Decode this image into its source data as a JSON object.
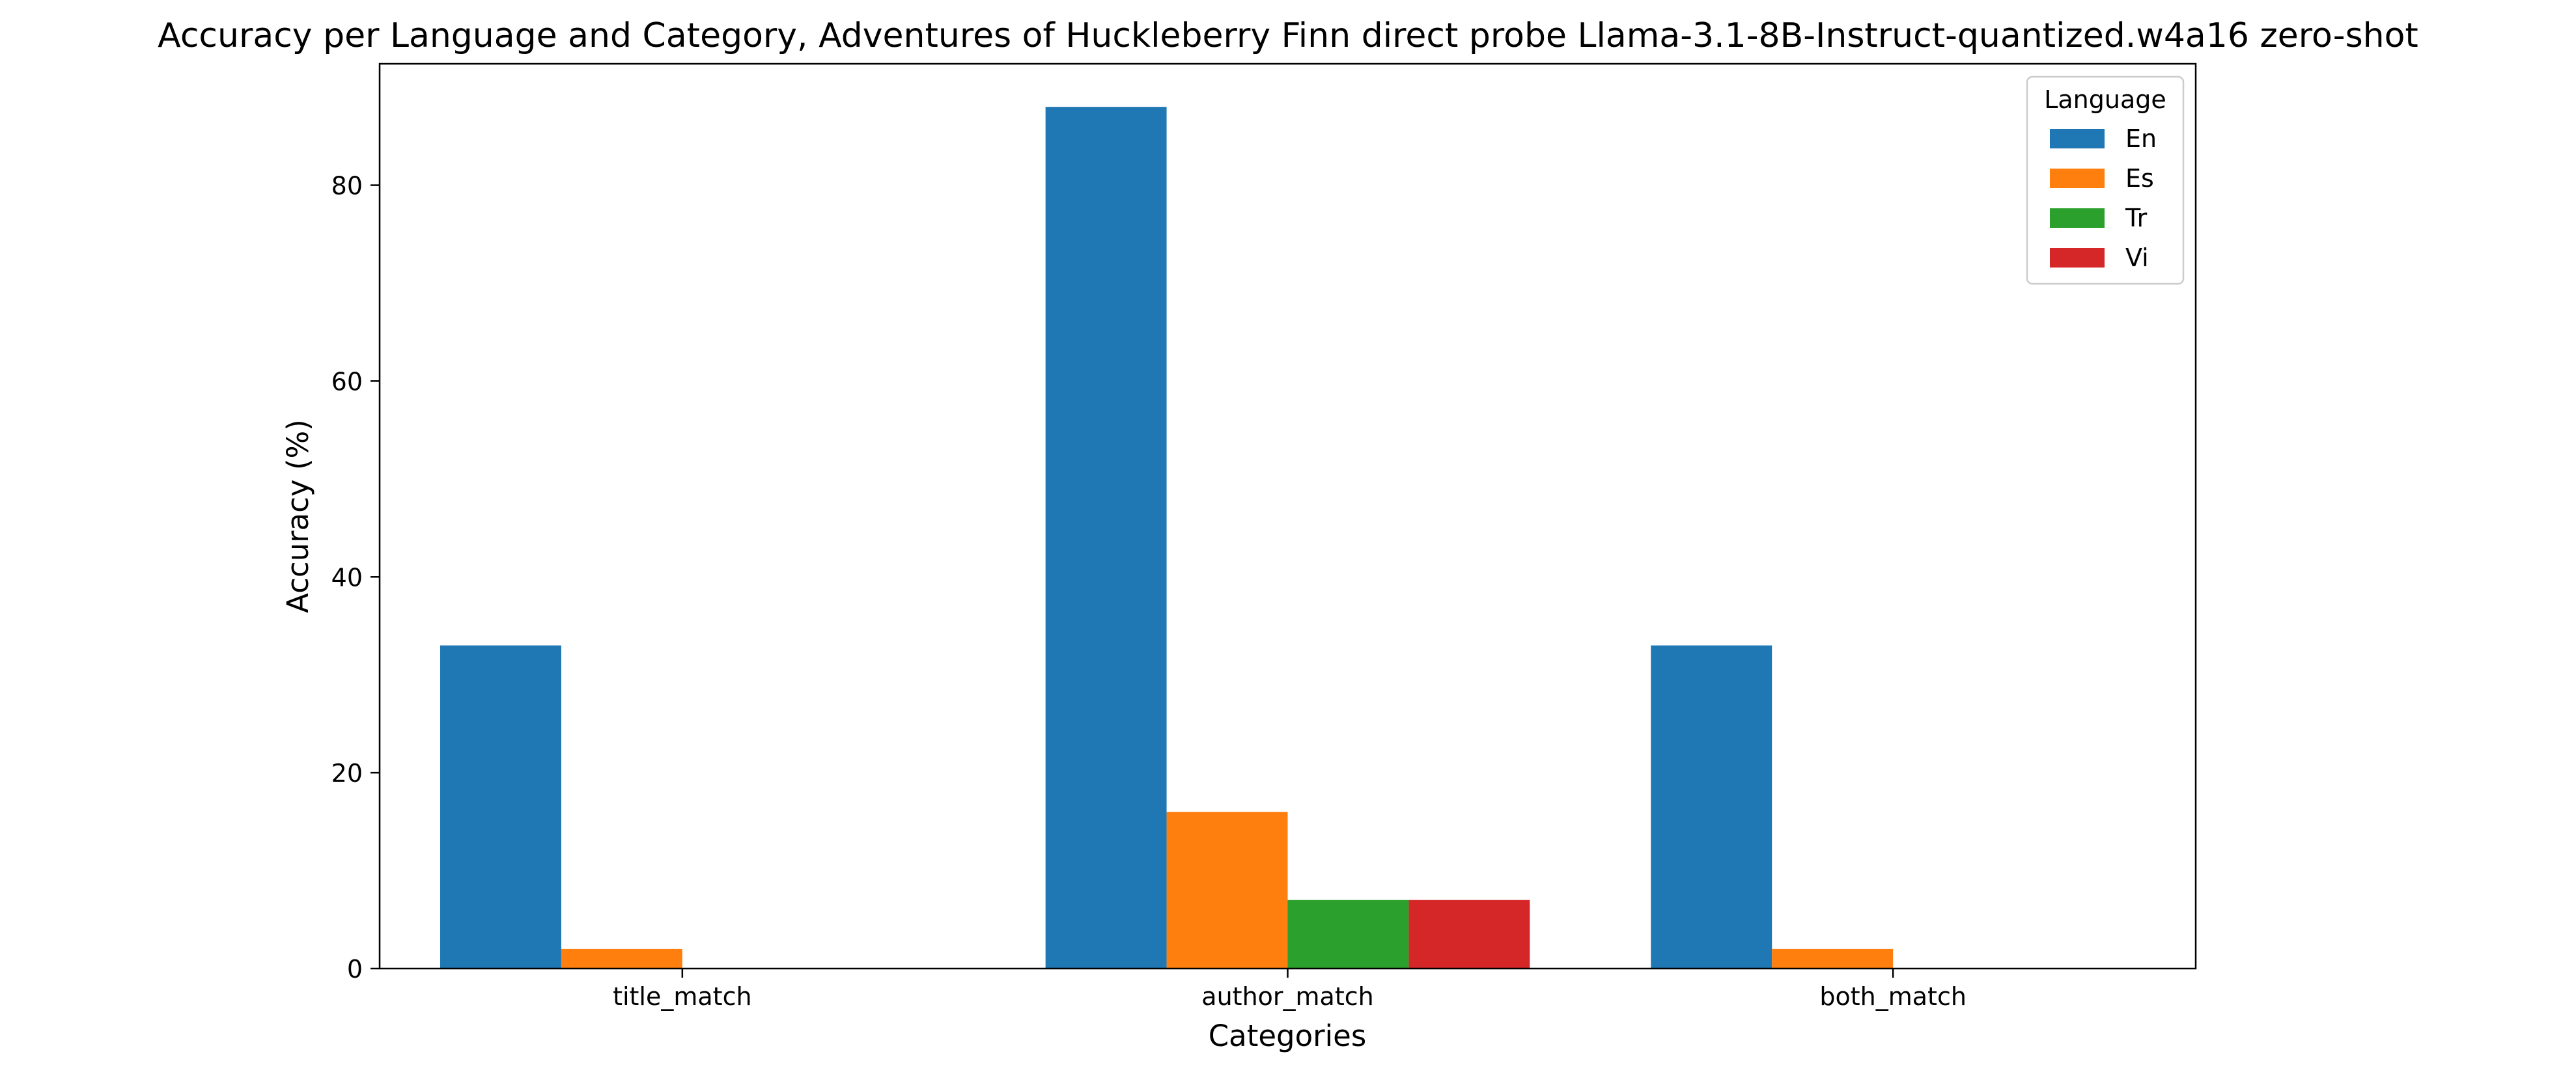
{
  "chart_data": {
    "type": "bar",
    "title": "Accuracy per Language and Category, Adventures of Huckleberry Finn direct probe Llama-3.1-8B-Instruct-quantized.w4a16 zero-shot",
    "xlabel": "Categories",
    "ylabel": "Accuracy (%)",
    "categories": [
      "title_match",
      "author_match",
      "both_match"
    ],
    "series": [
      {
        "name": "En",
        "color": "#1f77b4",
        "values": [
          33,
          88,
          33
        ]
      },
      {
        "name": "Es",
        "color": "#ff7f0e",
        "values": [
          2,
          16,
          2
        ]
      },
      {
        "name": "Tr",
        "color": "#2ca02c",
        "values": [
          0,
          7,
          0
        ]
      },
      {
        "name": "Vi",
        "color": "#d62728",
        "values": [
          0,
          7,
          0
        ]
      }
    ],
    "ylim": [
      0,
      92.4
    ],
    "yticks": [
      0,
      20,
      40,
      60,
      80
    ],
    "grid": false,
    "legend": {
      "title": "Language",
      "placement": "top-right"
    }
  }
}
